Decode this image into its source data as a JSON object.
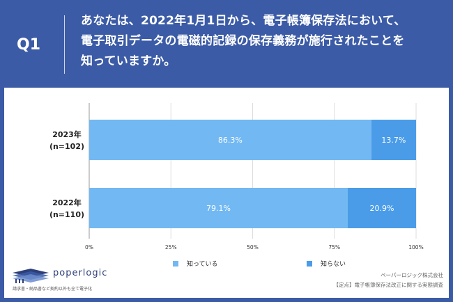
{
  "question": {
    "label": "Q1",
    "lines": [
      "あなたは、2022年1月1日から、電子帳簿保存法において、",
      "電子取引データの電磁的記録の保存義務が施行されたことを",
      "知っていますか。"
    ]
  },
  "chart_data": {
    "type": "bar",
    "orientation": "horizontal",
    "stacked": true,
    "categories": [
      "2023年\n(n=102)",
      "2022年\n(n=110)"
    ],
    "category_lines": [
      [
        "2023年",
        "(n=102)"
      ],
      [
        "2022年",
        "(n=110)"
      ]
    ],
    "series": [
      {
        "name": "知っている",
        "values": [
          86.3,
          79.1
        ],
        "labels": [
          "86.3%",
          "79.1%"
        ],
        "color": "#72b8f2"
      },
      {
        "name": "知らない",
        "values": [
          13.7,
          20.9
        ],
        "labels": [
          "13.7%",
          "20.9%"
        ],
        "color": "#4a9ce8"
      }
    ],
    "xlim": [
      0,
      100
    ],
    "xticks": [
      "0%",
      "25%",
      "50%",
      "75%",
      "100%"
    ],
    "xtick_values": [
      0,
      25,
      50,
      75,
      100
    ],
    "grid": true,
    "legend_position": "bottom"
  },
  "brand": {
    "name": "poperlogic",
    "tagline": "請求書・納品書など契約以外も全て電子化"
  },
  "credit": {
    "company": "ペーパーロジック株式会社",
    "survey": "【定点】電子帳簿保存法改正に関する実態調査"
  }
}
